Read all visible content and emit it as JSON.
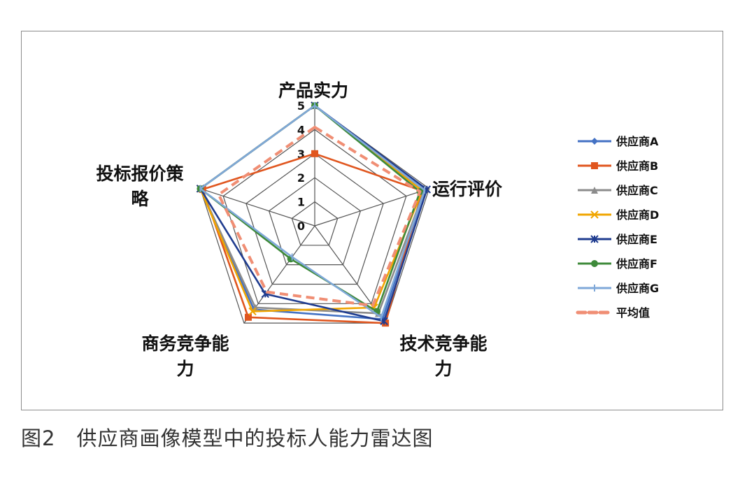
{
  "caption": "图2　供应商画像模型中的投标人能力雷达图",
  "chart_data": {
    "type": "radar",
    "axes": [
      "产品实力",
      "运行评价",
      "技术竞争能力",
      "商务竞争能力",
      "投标报价策略"
    ],
    "axis_label_lines": [
      [
        "产品实力"
      ],
      [
        "运行评价"
      ],
      [
        "技术竞争能",
        "力"
      ],
      [
        "商务竞争能",
        "力"
      ],
      [
        "投标报价策",
        "略"
      ]
    ],
    "ticks": [
      "0",
      "1",
      "2",
      "3",
      "4",
      "5"
    ],
    "range": [
      0,
      5
    ],
    "grid": true,
    "legend_position": "right",
    "series": [
      {
        "name": "供应商A",
        "color": "#4472C4",
        "marker": "diamond",
        "values": [
          5,
          4.8,
          4.8,
          4.3,
          5
        ]
      },
      {
        "name": "供应商B",
        "color": "#E0561F",
        "marker": "square",
        "values": [
          3,
          4.7,
          5,
          4.7,
          4.9
        ]
      },
      {
        "name": "供应商C",
        "color": "#8C8C8C",
        "marker": "triangle",
        "values": [
          5,
          4.8,
          4.5,
          4.2,
          5
        ]
      },
      {
        "name": "供应商D",
        "color": "#F0A500",
        "marker": "x",
        "values": [
          5,
          4.7,
          4.2,
          4.4,
          5
        ]
      },
      {
        "name": "供应商E",
        "color": "#1F3C8F",
        "marker": "star",
        "values": [
          5,
          4.9,
          4.9,
          3.5,
          5
        ]
      },
      {
        "name": "供应商F",
        "color": "#3E8A3A",
        "marker": "circle",
        "values": [
          5,
          4.6,
          4.4,
          1.7,
          5
        ]
      },
      {
        "name": "供应商G",
        "color": "#7FA8D8",
        "marker": "plus",
        "values": [
          5,
          4.8,
          4.7,
          1.6,
          5
        ]
      },
      {
        "name": "平均值",
        "color": "#F08E74",
        "marker": "none",
        "dashed": true,
        "values": [
          4.1,
          4.6,
          4.1,
          3.4,
          4.2
        ]
      }
    ]
  }
}
